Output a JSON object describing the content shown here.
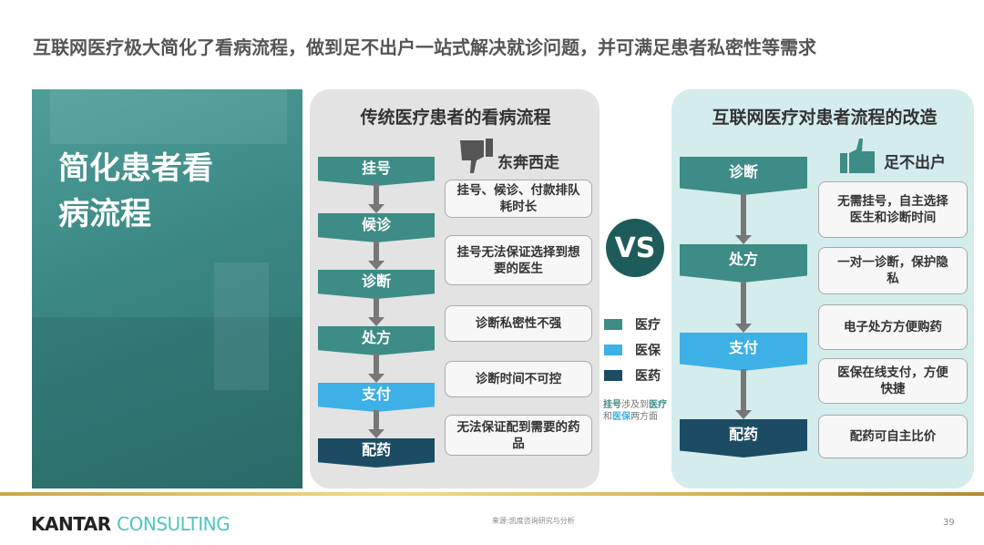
{
  "title": "互联网医疗极大简化了看病流程，做到足不出户一站式解决就诊问题，并可满足患者私密性等需求",
  "hero_text": "简化患者看病流程",
  "traditional": {
    "title": "传统医疗患者的看病流程",
    "verdict_icon": "thumbs-down-icon",
    "verdict": "东奔西走",
    "steps": [
      {
        "label": "挂号",
        "type": "医疗"
      },
      {
        "label": "候诊",
        "type": "医疗"
      },
      {
        "label": "诊断",
        "type": "医疗"
      },
      {
        "label": "处方",
        "type": "医疗"
      },
      {
        "label": "支付",
        "type": "医保"
      },
      {
        "label": "配药",
        "type": "医药"
      }
    ],
    "issues": [
      "挂号、候诊、付款排队耗时长",
      "挂号无法保证选择到想要的医生",
      "诊断私密性不强",
      "诊断时间不可控",
      "无法保证配到需要的药品"
    ]
  },
  "vs": "VS",
  "legend": [
    {
      "label": "医疗",
      "color": "#3d8c86"
    },
    {
      "label": "医保",
      "color": "#3db0e6"
    },
    {
      "label": "医药",
      "color": "#1c4c63"
    }
  ],
  "note": {
    "p1": "挂号",
    "p2": "涉及到",
    "p3": "医疗",
    "p4": "和",
    "p5": "医保",
    "p6": "两方面"
  },
  "internet": {
    "title": "互联网医疗对患者流程的改造",
    "verdict_icon": "thumbs-up-icon",
    "verdict": "足不出户",
    "steps": [
      {
        "label": "诊断",
        "type": "医疗"
      },
      {
        "label": "处方",
        "type": "医疗"
      },
      {
        "label": "支付",
        "type": "医保"
      },
      {
        "label": "配药",
        "type": "医药"
      }
    ],
    "benefits": [
      "无需挂号，自主选择医生和诊断时间",
      "一对一诊断，保护隐私",
      "电子处方方便购药",
      "医保在线支付，方便快捷",
      "配药可自主比价"
    ]
  },
  "footer": {
    "logo_a": "KANTAR",
    "logo_b": "CONSULTING",
    "source": "来源:凯度咨询研究与分析",
    "page": "39"
  }
}
